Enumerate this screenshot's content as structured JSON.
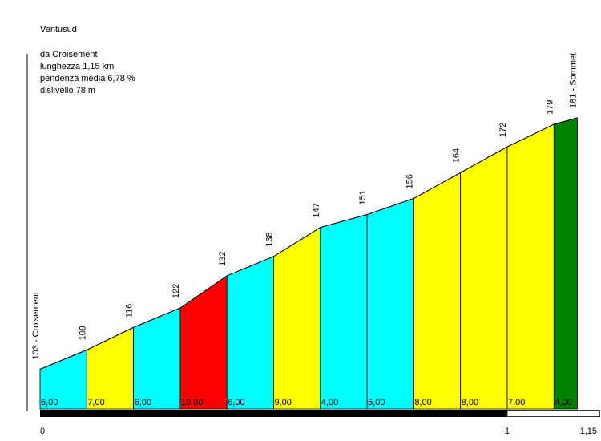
{
  "title": "Ventusud",
  "info": {
    "start": "da Croisement",
    "length": "lunghezza 1,15 km",
    "avg_gradient": "pendenza media 6,78 %",
    "elevation_gain": "dislivello 78 m"
  },
  "colors": {
    "cyan": "#00ffff",
    "yellow": "#ffff00",
    "red": "#ff0000",
    "green": "#008000",
    "bar": "#000000"
  },
  "chart_data": {
    "type": "area",
    "x_unit": "km",
    "y_unit": "m",
    "x": [
      0,
      0.1,
      0.2,
      0.3,
      0.4,
      0.5,
      0.6,
      0.7,
      0.8,
      0.9,
      1.0,
      1.1,
      1.15
    ],
    "elevations": [
      103,
      109,
      116,
      122,
      132,
      138,
      147,
      151,
      156,
      164,
      172,
      179,
      181
    ],
    "elevation_labels": [
      "103 - Croisement",
      "109",
      "116",
      "122",
      "132",
      "138",
      "147",
      "151",
      "156",
      "164",
      "172",
      "179",
      "181 - Sommet"
    ],
    "segments": [
      {
        "gradient": "6,00",
        "color": "cyan"
      },
      {
        "gradient": "7,00",
        "color": "yellow"
      },
      {
        "gradient": "6,00",
        "color": "cyan"
      },
      {
        "gradient": "10,00",
        "color": "red"
      },
      {
        "gradient": "6,00",
        "color": "cyan"
      },
      {
        "gradient": "9,00",
        "color": "yellow"
      },
      {
        "gradient": "4,00",
        "color": "cyan"
      },
      {
        "gradient": "5,00",
        "color": "cyan"
      },
      {
        "gradient": "8,00",
        "color": "yellow"
      },
      {
        "gradient": "8,00",
        "color": "yellow"
      },
      {
        "gradient": "7,00",
        "color": "yellow"
      },
      {
        "gradient": "4,00",
        "color": "green"
      }
    ],
    "km_labels": [
      {
        "x": 0,
        "label": "0"
      },
      {
        "x": 1.0,
        "label": "1"
      },
      {
        "x": 1.15,
        "label": "1,15"
      }
    ]
  }
}
